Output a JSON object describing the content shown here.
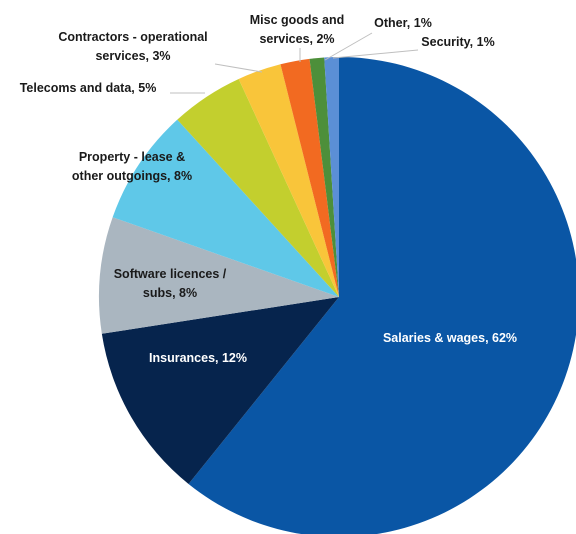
{
  "chart_data": {
    "type": "pie",
    "title": "",
    "unit": "%",
    "slices": [
      {
        "label": "Salaries & wages, 62%",
        "value": 62,
        "color": "#0a56a5"
      },
      {
        "label": "Insurances, 12%",
        "value": 12,
        "color": "#06244d"
      },
      {
        "label": "Software licences / subs, 8%",
        "value": 8,
        "color": "#aab6c0"
      },
      {
        "label": "Property - lease & other outgoings, 8%",
        "value": 8,
        "color": "#5fc8e8"
      },
      {
        "label": "Telecoms and data, 5%",
        "value": 5,
        "color": "#c3cf2e"
      },
      {
        "label": "Contractors - operational services, 3%",
        "value": 3,
        "color": "#f9c53a"
      },
      {
        "label": "Misc goods and services, 2%",
        "value": 2,
        "color": "#f26a21"
      },
      {
        "label": "Other, 1%",
        "value": 1,
        "color": "#4d8f3a"
      },
      {
        "label": "Security, 1%",
        "value": 1,
        "color": "#5b8fd6"
      }
    ],
    "legend": "none",
    "label_placement": "data labels inside large slices, outside with leader lines for small slices"
  }
}
